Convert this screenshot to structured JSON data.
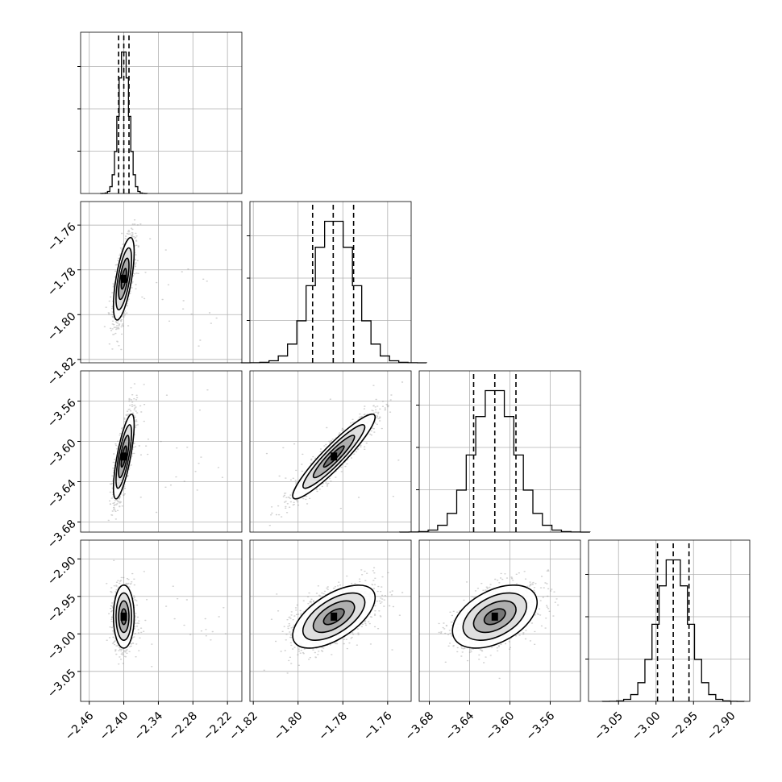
{
  "chart_data": {
    "type": "corner",
    "grid": true,
    "colors": {
      "line": "#000000",
      "grid": "#b0b0b0",
      "points": "#777777"
    },
    "parameters": [
      {
        "index": 0,
        "mean": -2.4,
        "std": 0.009,
        "quantiles": [
          -2.409,
          -2.4,
          -2.391
        ],
        "range": [
          -2.475,
          -2.195
        ],
        "ticks": [
          -2.46,
          -2.4,
          -2.34,
          -2.28,
          -2.22
        ],
        "tick_labels": [
          "−2.46",
          "−2.40",
          "−2.34",
          "−2.28",
          "−2.22"
        ]
      },
      {
        "index": 1,
        "mean": -1.784,
        "std": 0.0092,
        "quantiles": [
          -1.7935,
          -1.7843,
          -1.7752
        ],
        "range": [
          -1.8215,
          -1.7495
        ],
        "ticks": [
          -1.82,
          -1.8,
          -1.78,
          -1.76
        ],
        "tick_labels": [
          "−1.82",
          "−1.80",
          "−1.78",
          "−1.76"
        ]
      },
      {
        "index": 2,
        "mean": -3.615,
        "std": 0.021,
        "quantiles": [
          -3.636,
          -3.615,
          -3.594
        ],
        "range": [
          -3.69,
          -3.53
        ],
        "ticks": [
          -3.68,
          -3.64,
          -3.6,
          -3.56
        ],
        "tick_labels": [
          "−3.68",
          "−3.64",
          "−3.60",
          "−3.56"
        ]
      },
      {
        "index": 3,
        "mean": -2.977,
        "std": 0.021,
        "quantiles": [
          -2.998,
          -2.977,
          -2.956
        ],
        "range": [
          -3.09,
          -2.875
        ],
        "ticks": [
          -3.05,
          -3.0,
          -2.95,
          -2.9
        ],
        "tick_labels": [
          "−3.05",
          "−3.00",
          "−2.95",
          "−2.90"
        ]
      }
    ],
    "correlations": [
      {
        "pair": [
          0,
          1
        ],
        "rho": 0.65
      },
      {
        "pair": [
          0,
          2
        ],
        "rho": 0.75
      },
      {
        "pair": [
          1,
          2
        ],
        "rho": 0.93
      },
      {
        "pair": [
          0,
          3
        ],
        "rho": 0.0
      },
      {
        "pair": [
          1,
          3
        ],
        "rho": 0.6
      },
      {
        "pair": [
          2,
          3
        ],
        "rho": 0.45
      }
    ],
    "contour_levels": [
      0.5,
      1.0,
      1.5,
      2.0
    ],
    "histogram_bins": 20
  }
}
